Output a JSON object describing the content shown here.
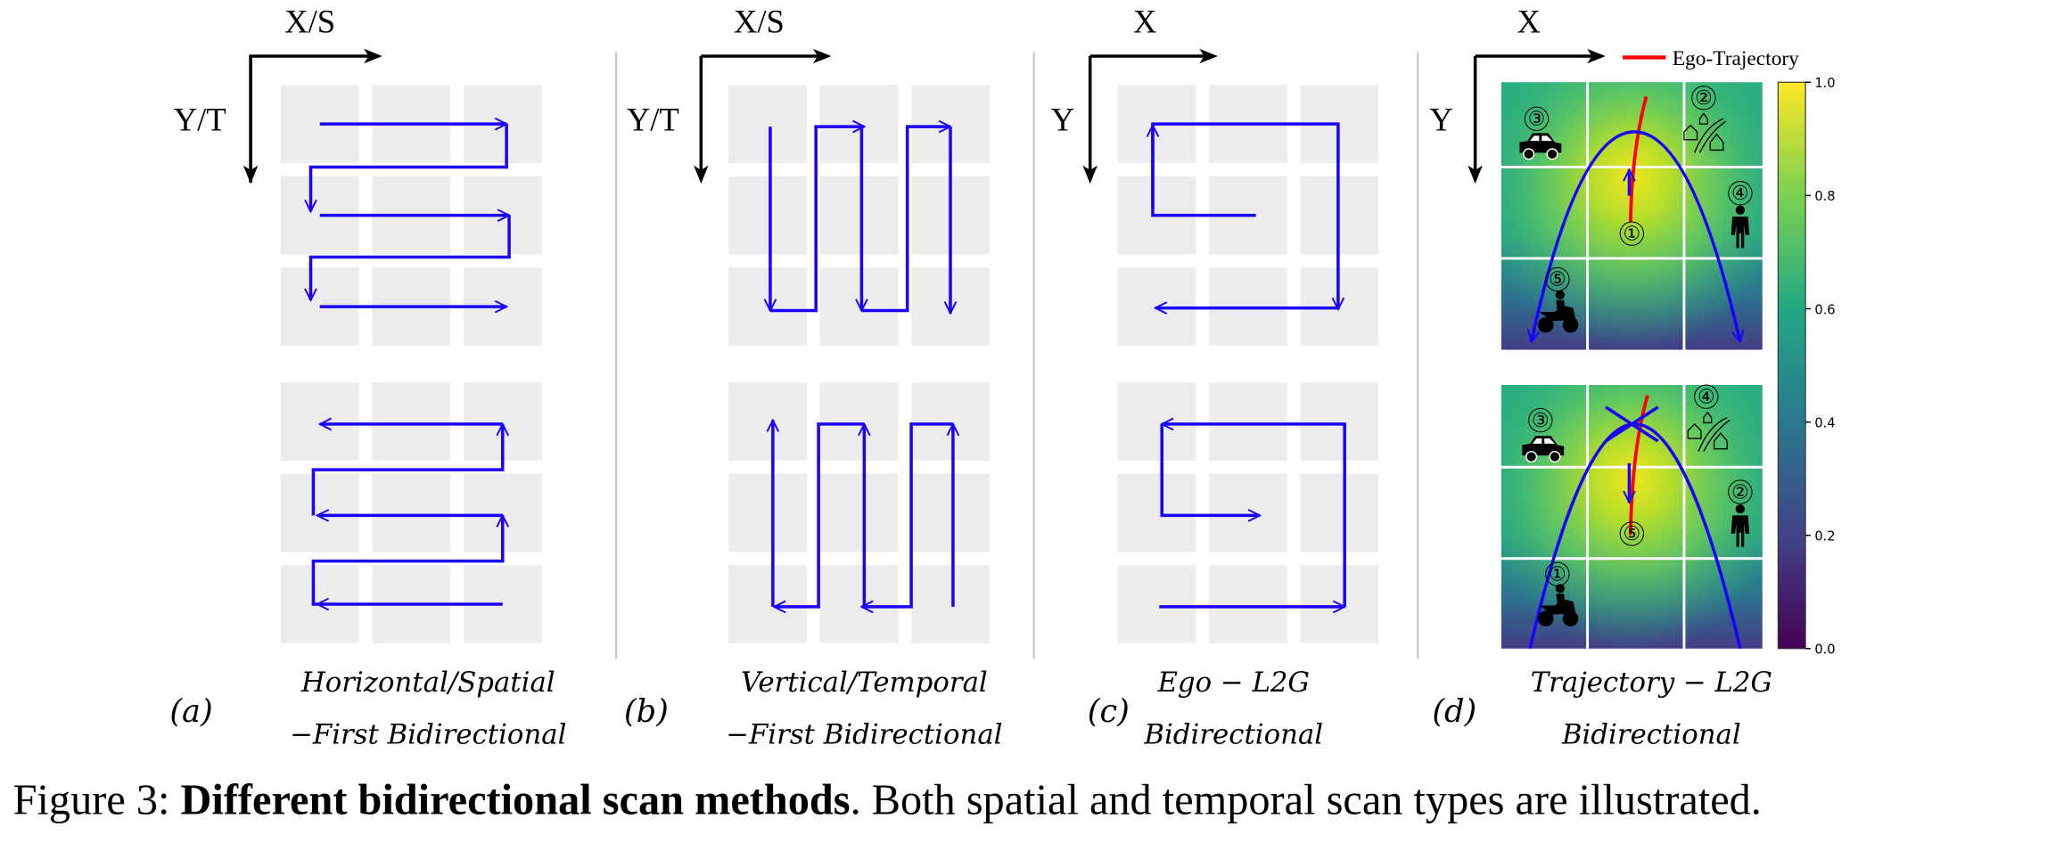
{
  "panels": [
    {
      "id": "a",
      "x_axis": "X/S",
      "y_axis": "Y/T",
      "label": "(a)",
      "caption_line1": "Horizontal/Spatial",
      "caption_line2": "−First Bidirectional"
    },
    {
      "id": "b",
      "x_axis": "X/S",
      "y_axis": "Y/T",
      "label": "(b)",
      "caption_line1": "Vertical/Temporal",
      "caption_line2": "−First Bidirectional"
    },
    {
      "id": "c",
      "x_axis": "X",
      "y_axis": "Y",
      "label": "(c)",
      "caption_line1": "Ego − L2G",
      "caption_line2": "Bidirectional"
    },
    {
      "id": "d",
      "x_axis": "X",
      "y_axis": "Y",
      "label": "(d)",
      "caption_line1": "Trajectory − L2G",
      "caption_line2": "Bidirectional"
    }
  ],
  "legend": {
    "label": "Ego-Trajectory",
    "color": "#ff0000"
  },
  "scan_color": "#1a00ff",
  "colorbar": {
    "colormap": "viridis",
    "range": [
      0,
      1
    ],
    "ticks": [
      "1.0",
      "0.8",
      "0.6",
      "0.4",
      "0.2",
      "0.0"
    ]
  },
  "heatmap_top": {
    "objects": [
      {
        "num": "③",
        "icon": "car"
      },
      {
        "num": "②",
        "icon": "houses-road"
      },
      {
        "num": "④",
        "icon": "person"
      },
      {
        "num": "①",
        "icon": "ego"
      },
      {
        "num": "⑤",
        "icon": "motorbike"
      }
    ]
  },
  "heatmap_bottom": {
    "objects": [
      {
        "num": "③",
        "icon": "car"
      },
      {
        "num": "④",
        "icon": "houses-road"
      },
      {
        "num": "②",
        "icon": "person"
      },
      {
        "num": "⑤",
        "icon": "ego"
      },
      {
        "num": "①",
        "icon": "motorbike"
      }
    ]
  },
  "figure_caption": {
    "prefix": "Figure 3: ",
    "bold": "Different bidirectional scan methods",
    "rest": ". Both spatial and temporal scan types are illustrated."
  }
}
